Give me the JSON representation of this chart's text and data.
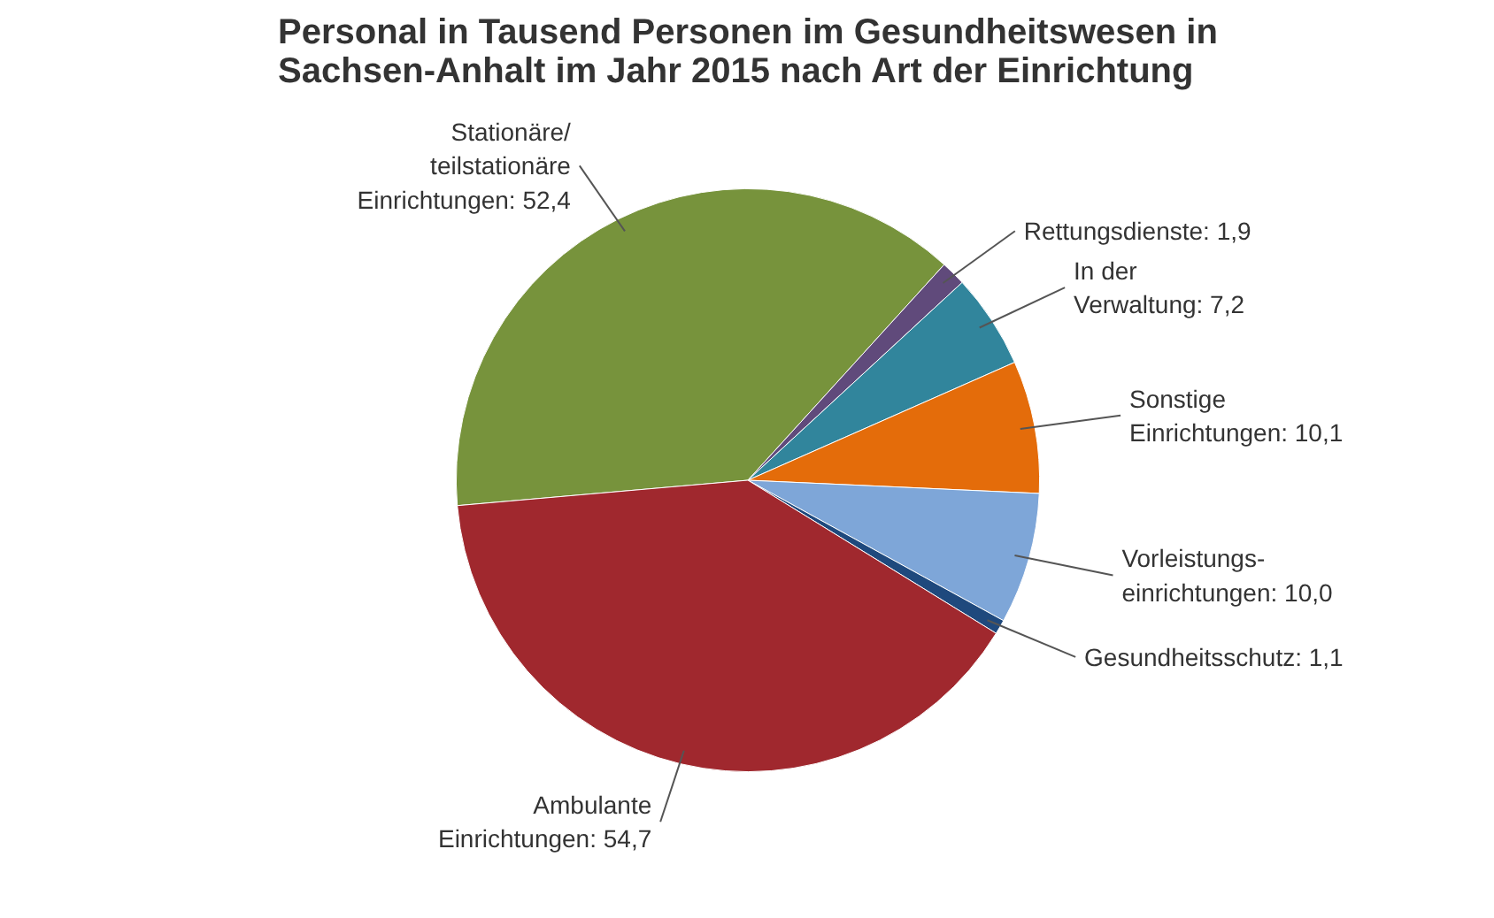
{
  "chart_data": {
    "type": "pie",
    "title": "Personal in Tausend Personen im Gesundheitswesen in\nSachsen-Anhalt im Jahr 2015 nach Art der Einrichtung",
    "categories": [
      "Stationäre/ teilstationäre Einrichtungen",
      "Rettungsdienste",
      "In der Verwaltung",
      "Sonstige Einrichtungen",
      "Vorleistungs-einrichtungen",
      "Gesundheitsschutz",
      "Ambulante Einrichtungen"
    ],
    "values": [
      52.4,
      1.9,
      7.2,
      10.1,
      10.0,
      1.1,
      54.7
    ],
    "value_labels": [
      "52,4",
      "1,9",
      "7,2",
      "10,1",
      "10,0",
      "1,1",
      "54,7"
    ],
    "colors": [
      "#77933c",
      "#604a7b",
      "#31859c",
      "#e46c0a",
      "#7ea6d8",
      "#1f497d",
      "#a0282e"
    ]
  }
}
